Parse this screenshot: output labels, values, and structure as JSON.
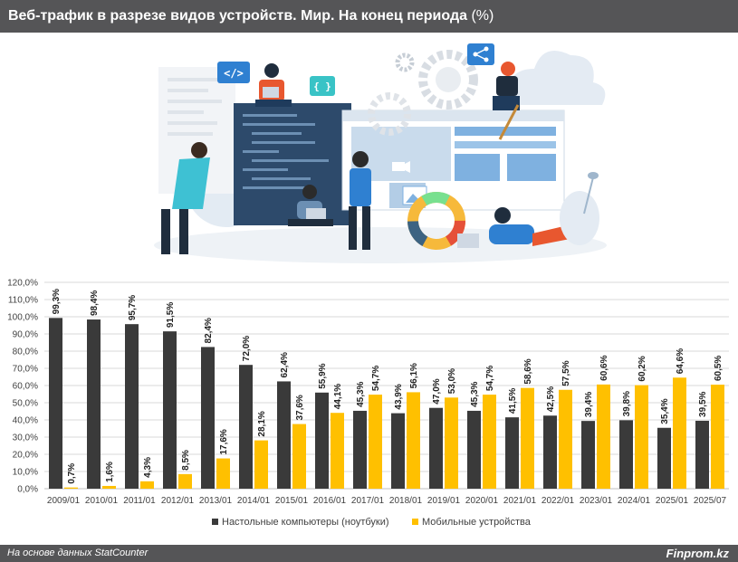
{
  "title": {
    "main": "Веб-трафик в разрезе видов устройств. Мир. На конец периода ",
    "unit": "(%)"
  },
  "footer": {
    "source": "На основе данных StatCounter",
    "brand": "Finprom.kz"
  },
  "illustration": {
    "icons": [
      "code-icon",
      "braces-icon",
      "share-icon",
      "gear-icon",
      "cloud-icon",
      "globe-icon",
      "video-icon",
      "image-icon",
      "color-wheel-icon"
    ]
  },
  "colors": {
    "desktop": "#3a3a3a",
    "mobile": "#ffc000",
    "header": "#555557",
    "grid": "#d9d9d9"
  },
  "chart_data": {
    "type": "bar",
    "categories": [
      "2009/01",
      "2010/01",
      "2011/01",
      "2012/01",
      "2013/01",
      "2014/01",
      "2015/01",
      "2016/01",
      "2017/01",
      "2018/01",
      "2019/01",
      "2020/01",
      "2021/01",
      "2022/01",
      "2023/01",
      "2024/01",
      "2025/01",
      "2025/07"
    ],
    "series": [
      {
        "name": "Настольные компьютеры (ноутбуки)",
        "values": [
          99.3,
          98.4,
          95.7,
          91.5,
          82.4,
          72.0,
          62.4,
          55.9,
          45.3,
          43.9,
          47.0,
          45.3,
          41.5,
          42.5,
          39.4,
          39.8,
          35.4,
          39.5
        ],
        "labels": [
          "99,3%",
          "98,4%",
          "95,7%",
          "91,5%",
          "82,4%",
          "72,0%",
          "62,4%",
          "55,9%",
          "45,3%",
          "43,9%",
          "47,0%",
          "45,3%",
          "41,5%",
          "42,5%",
          "39,4%",
          "39,8%",
          "35,4%",
          "39,5%"
        ]
      },
      {
        "name": "Мобильные устройства",
        "values": [
          0.7,
          1.6,
          4.3,
          8.5,
          17.6,
          28.1,
          37.6,
          44.1,
          54.7,
          56.1,
          53.0,
          54.7,
          58.6,
          57.5,
          60.6,
          60.2,
          64.6,
          60.5
        ],
        "labels": [
          "0,7%",
          "1,6%",
          "4,3%",
          "8,5%",
          "17,6%",
          "28,1%",
          "37,6%",
          "44,1%",
          "54,7%",
          "56,1%",
          "53,0%",
          "54,7%",
          "58,6%",
          "57,5%",
          "60,6%",
          "60,2%",
          "64,6%",
          "60,5%"
        ]
      }
    ],
    "y_ticks": [
      "0,0%",
      "10,0%",
      "20,0%",
      "30,0%",
      "40,0%",
      "50,0%",
      "60,0%",
      "70,0%",
      "80,0%",
      "90,0%",
      "100,0%",
      "110,0%",
      "120,0%"
    ],
    "ylim": [
      0,
      120
    ],
    "grid": true,
    "legend_position": "bottom"
  }
}
